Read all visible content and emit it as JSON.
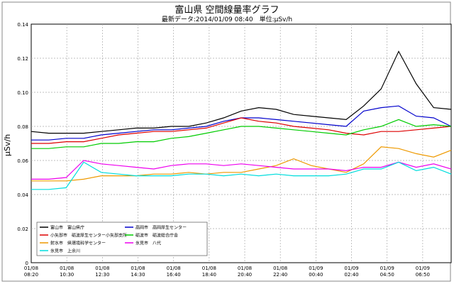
{
  "chart_data": {
    "type": "line",
    "title": "富山県 空間線量率グラフ",
    "subtitle": "最新データ:2014/01/09 08:40　単位:μSv/h",
    "ylabel": "μSv/h",
    "xlabel": "",
    "ylim": [
      0,
      0.14
    ],
    "yticks": [
      "0",
      "0.02",
      "0.04",
      "0.06",
      "0.08",
      "0.10",
      "0.12",
      "0.14"
    ],
    "xticks": [
      {
        "date": "01/08",
        "time": "08:20"
      },
      {
        "date": "01/08",
        "time": "10:30"
      },
      {
        "date": "01/08",
        "time": "12:30"
      },
      {
        "date": "01/08",
        "time": "14:30"
      },
      {
        "date": "01/08",
        "time": "16:40"
      },
      {
        "date": "01/08",
        "time": "18:40"
      },
      {
        "date": "01/08",
        "time": "20:40"
      },
      {
        "date": "01/08",
        "time": "22:40"
      },
      {
        "date": "01/09",
        "time": "00:40"
      },
      {
        "date": "01/09",
        "time": "02:40"
      },
      {
        "date": "01/09",
        "time": "04:50"
      },
      {
        "date": "01/09",
        "time": "06:50"
      }
    ],
    "x": [
      "01/08 08:20",
      "01/08 09:20",
      "01/08 10:20",
      "01/08 11:20",
      "01/08 12:20",
      "01/08 13:20",
      "01/08 14:20",
      "01/08 15:20",
      "01/08 16:20",
      "01/08 17:20",
      "01/08 18:20",
      "01/08 19:20",
      "01/08 20:20",
      "01/08 21:20",
      "01/08 22:20",
      "01/08 23:20",
      "01/09 00:20",
      "01/09 01:20",
      "01/09 02:20",
      "01/09 03:20",
      "01/09 04:20",
      "01/09 05:20",
      "01/09 06:20",
      "01/09 07:20",
      "01/09 08:20"
    ],
    "grid": true,
    "legend_position": "bottom-left",
    "series": [
      {
        "name": "富山市　富山県庁",
        "color": "#000000",
        "values": [
          0.077,
          0.076,
          0.076,
          0.076,
          0.077,
          0.078,
          0.079,
          0.079,
          0.08,
          0.08,
          0.082,
          0.085,
          0.089,
          0.091,
          0.09,
          0.087,
          0.086,
          0.085,
          0.084,
          0.092,
          0.102,
          0.124,
          0.105,
          0.091,
          0.09
        ]
      },
      {
        "name": "高岡市　高岡厚生センター",
        "color": "#0000cc",
        "values": [
          0.072,
          0.072,
          0.073,
          0.073,
          0.075,
          0.076,
          0.077,
          0.078,
          0.078,
          0.079,
          0.08,
          0.083,
          0.085,
          0.085,
          0.084,
          0.083,
          0.082,
          0.081,
          0.08,
          0.089,
          0.091,
          0.092,
          0.086,
          0.085,
          0.08
        ]
      },
      {
        "name": "小矢部市　砺波厚生センター小矢部支所",
        "color": "#dd0000",
        "values": [
          0.07,
          0.07,
          0.071,
          0.071,
          0.073,
          0.075,
          0.076,
          0.077,
          0.077,
          0.078,
          0.079,
          0.082,
          0.085,
          0.083,
          0.082,
          0.08,
          0.079,
          0.078,
          0.076,
          0.075,
          0.077,
          0.077,
          0.078,
          0.079,
          0.08
        ]
      },
      {
        "name": "砺波市　砺波総合庁舎",
        "color": "#00cc00",
        "values": [
          0.067,
          0.067,
          0.068,
          0.068,
          0.07,
          0.07,
          0.071,
          0.071,
          0.073,
          0.074,
          0.076,
          0.078,
          0.08,
          0.08,
          0.079,
          0.078,
          0.077,
          0.076,
          0.075,
          0.078,
          0.08,
          0.084,
          0.08,
          0.081,
          0.08
        ]
      },
      {
        "name": "射水市　県環境科学センター",
        "color": "#ee9900",
        "values": [
          0.048,
          0.048,
          0.048,
          0.049,
          0.051,
          0.051,
          0.051,
          0.052,
          0.052,
          0.053,
          0.052,
          0.053,
          0.053,
          0.055,
          0.057,
          0.061,
          0.057,
          0.055,
          0.053,
          0.058,
          0.068,
          0.067,
          0.064,
          0.062,
          0.066
        ]
      },
      {
        "name": "氷見市　八代",
        "color": "#ee00ee",
        "values": [
          0.049,
          0.049,
          0.05,
          0.06,
          0.058,
          0.057,
          0.056,
          0.055,
          0.057,
          0.058,
          0.058,
          0.057,
          0.058,
          0.057,
          0.056,
          0.055,
          0.055,
          0.055,
          0.054,
          0.056,
          0.056,
          0.059,
          0.056,
          0.058,
          0.055
        ]
      },
      {
        "name": "氷見市　上余川",
        "color": "#00dddd",
        "values": [
          0.043,
          0.043,
          0.044,
          0.059,
          0.053,
          0.052,
          0.051,
          0.051,
          0.051,
          0.052,
          0.052,
          0.051,
          0.052,
          0.051,
          0.052,
          0.051,
          0.051,
          0.051,
          0.052,
          0.055,
          0.055,
          0.059,
          0.054,
          0.056,
          0.052
        ]
      }
    ],
    "legend_order": [
      0,
      1,
      2,
      3,
      4,
      5,
      6
    ]
  }
}
